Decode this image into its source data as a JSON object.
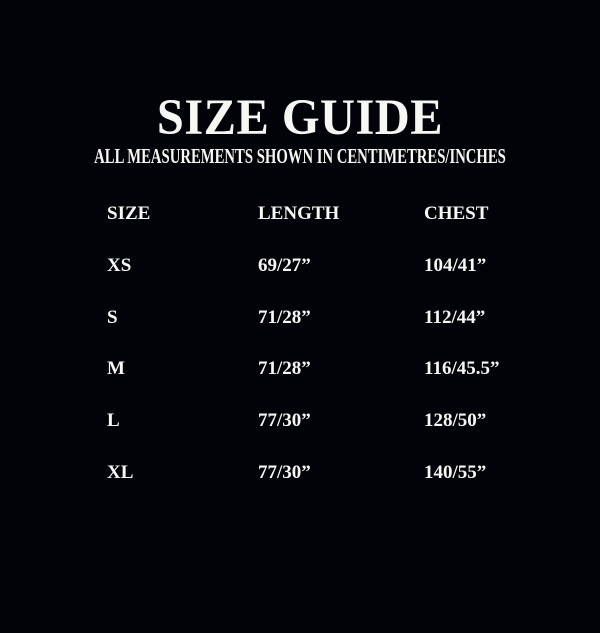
{
  "colors": {
    "background": "#020308",
    "text": "#f7f7f4"
  },
  "chart_data": {
    "type": "table",
    "title": "SIZE GUIDE",
    "subtitle": "ALL MEASUREMENTS SHOWN IN CENTIMETRES/INCHES",
    "columns": [
      "SIZE",
      "LENGTH",
      "CHEST"
    ],
    "rows": [
      [
        "XS",
        "69/27”",
        "104/41”"
      ],
      [
        "S",
        "71/28”",
        "112/44”"
      ],
      [
        "M",
        "71/28”",
        "116/45.5”"
      ],
      [
        "L",
        "77/30”",
        "128/50”"
      ],
      [
        "XL",
        "77/30”",
        "140/55”"
      ]
    ]
  }
}
